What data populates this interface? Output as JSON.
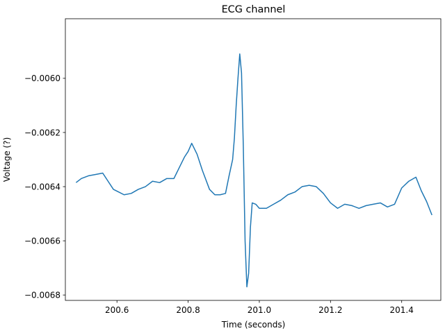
{
  "chart_data": {
    "type": "line",
    "title": "ECG channel",
    "xlabel": "Time (seconds)",
    "ylabel": "Voltage (?)",
    "xlim": [
      200.455,
      201.51
    ],
    "ylim": [
      -0.00682,
      -0.00578
    ],
    "xticks": [
      200.6,
      200.8,
      201.0,
      201.2,
      201.4
    ],
    "xtick_labels": [
      "200.6",
      "200.8",
      "201.0",
      "201.2",
      "201.4"
    ],
    "yticks": [
      -0.0068,
      -0.0066,
      -0.0064,
      -0.0062,
      -0.006
    ],
    "ytick_labels": [
      "−0.0068",
      "−0.0066",
      "−0.0064",
      "−0.0062",
      "−0.0060"
    ],
    "grid": false,
    "series": [
      {
        "color": "#1f77b4",
        "x": [
          200.485,
          200.5,
          200.52,
          200.54,
          200.56,
          200.575,
          200.59,
          200.605,
          200.62,
          200.64,
          200.66,
          200.68,
          200.7,
          200.72,
          200.74,
          200.76,
          200.775,
          200.79,
          200.8,
          200.81,
          200.825,
          200.84,
          200.86,
          200.875,
          200.89,
          200.905,
          200.915,
          200.925,
          200.93,
          200.935,
          200.94,
          200.945,
          200.95,
          200.955,
          200.96,
          200.965,
          200.97,
          200.975,
          200.98,
          200.99,
          201.0,
          201.02,
          201.04,
          201.06,
          201.08,
          201.1,
          201.12,
          201.14,
          201.16,
          201.18,
          201.2,
          201.22,
          201.24,
          201.26,
          201.28,
          201.3,
          201.32,
          201.34,
          201.36,
          201.38,
          201.4,
          201.42,
          201.44,
          201.455,
          201.47,
          201.485
        ],
        "y": [
          -0.006385,
          -0.00637,
          -0.00636,
          -0.006355,
          -0.00635,
          -0.00638,
          -0.00641,
          -0.00642,
          -0.00643,
          -0.006425,
          -0.00641,
          -0.0064,
          -0.00638,
          -0.006385,
          -0.00637,
          -0.00637,
          -0.00633,
          -0.00629,
          -0.00627,
          -0.00624,
          -0.00628,
          -0.00634,
          -0.00641,
          -0.00643,
          -0.00643,
          -0.006425,
          -0.00636,
          -0.0063,
          -0.00622,
          -0.0061,
          -0.006,
          -0.00591,
          -0.00598,
          -0.00625,
          -0.0066,
          -0.00677,
          -0.00672,
          -0.00655,
          -0.00646,
          -0.006465,
          -0.00648,
          -0.00648,
          -0.006465,
          -0.00645,
          -0.00643,
          -0.00642,
          -0.0064,
          -0.006395,
          -0.0064,
          -0.006425,
          -0.00646,
          -0.00648,
          -0.006465,
          -0.00647,
          -0.00648,
          -0.00647,
          -0.006465,
          -0.00646,
          -0.006475,
          -0.006465,
          -0.006405,
          -0.00638,
          -0.006365,
          -0.006415,
          -0.006455,
          -0.006505
        ]
      }
    ]
  }
}
